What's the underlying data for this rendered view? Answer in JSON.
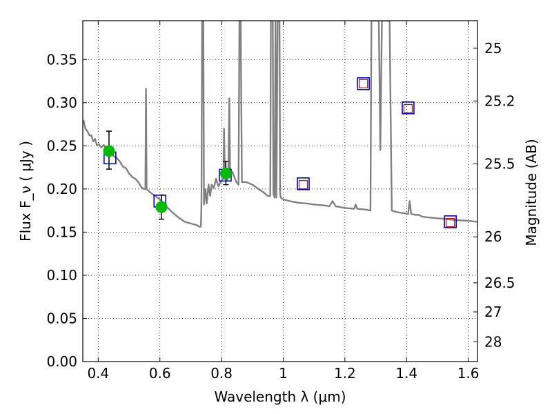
{
  "chart_data": {
    "type": "scatter",
    "xlabel": "Wavelength  λ (μm)",
    "ylabel": "Flux  F_ν  ( μJy )",
    "ylabel_right": "Magnitude (AB)",
    "xlim": [
      0.35,
      1.63
    ],
    "ylim": [
      0.0,
      0.395
    ],
    "grid": true,
    "x_ticks": [
      0.4,
      0.6,
      0.8,
      1.0,
      1.2,
      1.4,
      1.6
    ],
    "x_tick_labels": [
      "0.4",
      "0.6",
      "0.8",
      "1",
      "1.2",
      "1.4",
      "1.6"
    ],
    "y_ticks": [
      0.0,
      0.05,
      0.1,
      0.15,
      0.2,
      0.25,
      0.3,
      0.35
    ],
    "y_tick_labels": [
      "0.00",
      "0.05",
      "0.10",
      "0.15",
      "0.20",
      "0.25",
      "0.30",
      "0.35"
    ],
    "mag_ticks": [
      25,
      25.2,
      25.5,
      26,
      26.5,
      27,
      28
    ],
    "mag_tick_labels": [
      "25",
      "25.2",
      "25.5",
      "26",
      "26.5",
      "27",
      "28"
    ],
    "series": [
      {
        "kind": "line",
        "color": "#808080",
        "points": [
          [
            0.352,
            0.28
          ],
          [
            0.358,
            0.27
          ],
          [
            0.365,
            0.267
          ],
          [
            0.372,
            0.262
          ],
          [
            0.378,
            0.262
          ],
          [
            0.384,
            0.255
          ],
          [
            0.39,
            0.258
          ],
          [
            0.396,
            0.25
          ],
          [
            0.402,
            0.252
          ],
          [
            0.41,
            0.248
          ],
          [
            0.418,
            0.251
          ],
          [
            0.425,
            0.247
          ],
          [
            0.433,
            0.247
          ],
          [
            0.44,
            0.244
          ],
          [
            0.45,
            0.238
          ],
          [
            0.46,
            0.236
          ],
          [
            0.47,
            0.232
          ],
          [
            0.48,
            0.226
          ],
          [
            0.49,
            0.224
          ],
          [
            0.5,
            0.218
          ],
          [
            0.51,
            0.214
          ],
          [
            0.52,
            0.212
          ],
          [
            0.53,
            0.208
          ],
          [
            0.54,
            0.202
          ],
          [
            0.548,
            0.2
          ],
          [
            0.553,
            0.2
          ],
          [
            0.555,
            0.316
          ],
          [
            0.557,
            0.2
          ],
          [
            0.565,
            0.197
          ],
          [
            0.58,
            0.193
          ],
          [
            0.6,
            0.188
          ],
          [
            0.62,
            0.18
          ],
          [
            0.64,
            0.173
          ],
          [
            0.66,
            0.167
          ],
          [
            0.68,
            0.162
          ],
          [
            0.7,
            0.16
          ],
          [
            0.72,
            0.158
          ],
          [
            0.73,
            0.156
          ],
          [
            0.733,
            0.157
          ],
          [
            0.735,
            0.185
          ],
          [
            0.737,
            0.395
          ],
          [
            0.741,
            0.395
          ],
          [
            0.743,
            0.182
          ],
          [
            0.748,
            0.2
          ],
          [
            0.752,
            0.183
          ],
          [
            0.758,
            0.205
          ],
          [
            0.763,
            0.192
          ],
          [
            0.768,
            0.205
          ],
          [
            0.775,
            0.201
          ],
          [
            0.782,
            0.212
          ],
          [
            0.79,
            0.203
          ],
          [
            0.8,
            0.21
          ],
          [
            0.806,
            0.212
          ],
          [
            0.808,
            0.27
          ],
          [
            0.811,
            0.212
          ],
          [
            0.818,
            0.21
          ],
          [
            0.822,
            0.215
          ],
          [
            0.825,
            0.305
          ],
          [
            0.828,
            0.215
          ],
          [
            0.835,
            0.22
          ],
          [
            0.84,
            0.215
          ],
          [
            0.848,
            0.208
          ],
          [
            0.855,
            0.205
          ],
          [
            0.858,
            0.395
          ],
          [
            0.862,
            0.395
          ],
          [
            0.866,
            0.208
          ],
          [
            0.88,
            0.208
          ],
          [
            0.9,
            0.205
          ],
          [
            0.92,
            0.2
          ],
          [
            0.94,
            0.195
          ],
          [
            0.95,
            0.192
          ],
          [
            0.958,
            0.192
          ],
          [
            0.96,
            0.395
          ],
          [
            0.966,
            0.395
          ],
          [
            0.968,
            0.195
          ],
          [
            0.972,
            0.19
          ],
          [
            0.975,
            0.395
          ],
          [
            0.978,
            0.19
          ],
          [
            0.982,
            0.395
          ],
          [
            0.988,
            0.395
          ],
          [
            0.99,
            0.195
          ],
          [
            0.992,
            0.19
          ],
          [
            1.0,
            0.188
          ],
          [
            1.02,
            0.186
          ],
          [
            1.05,
            0.184
          ],
          [
            1.08,
            0.183
          ],
          [
            1.1,
            0.182
          ],
          [
            1.13,
            0.181
          ],
          [
            1.15,
            0.18
          ],
          [
            1.16,
            0.186
          ],
          [
            1.17,
            0.18
          ],
          [
            1.2,
            0.178
          ],
          [
            1.23,
            0.177
          ],
          [
            1.235,
            0.182
          ],
          [
            1.24,
            0.177
          ],
          [
            1.27,
            0.176
          ],
          [
            1.283,
            0.175
          ],
          [
            1.286,
            0.395
          ],
          [
            1.294,
            0.395
          ],
          [
            1.298,
            0.395
          ],
          [
            1.3,
            0.395
          ],
          [
            1.31,
            0.395
          ],
          [
            1.315,
            0.245
          ],
          [
            1.32,
            0.395
          ],
          [
            1.34,
            0.395
          ],
          [
            1.345,
            0.395
          ],
          [
            1.352,
            0.175
          ],
          [
            1.37,
            0.173
          ],
          [
            1.39,
            0.172
          ],
          [
            1.405,
            0.171
          ],
          [
            1.41,
            0.186
          ],
          [
            1.415,
            0.171
          ],
          [
            1.43,
            0.17
          ],
          [
            1.44,
            0.17
          ],
          [
            1.45,
            0.168
          ],
          [
            1.47,
            0.167
          ],
          [
            1.5,
            0.166
          ],
          [
            1.53,
            0.165
          ],
          [
            1.56,
            0.164
          ],
          [
            1.6,
            0.163
          ],
          [
            1.63,
            0.162
          ]
        ]
      },
      {
        "kind": "model_boxes",
        "color": "#0000cc",
        "points": [
          [
            0.438,
            0.236
          ],
          [
            0.6,
            0.186
          ],
          [
            0.812,
            0.216
          ],
          [
            1.065,
            0.206
          ],
          [
            1.26,
            0.322
          ],
          [
            1.405,
            0.294
          ],
          [
            1.542,
            0.162
          ]
        ]
      },
      {
        "kind": "obs_boxes",
        "color": "#cc0000",
        "points": [
          [
            1.065,
            0.205
          ],
          [
            1.26,
            0.322
          ],
          [
            1.405,
            0.293
          ],
          [
            1.542,
            0.161
          ]
        ]
      },
      {
        "kind": "obs_points",
        "color": "#00bb00",
        "points": [
          {
            "x": 0.435,
            "y": 0.244,
            "ylo": 0.223,
            "yhi": 0.267
          },
          {
            "x": 0.605,
            "y": 0.179,
            "ylo": 0.165,
            "yhi": 0.193
          },
          {
            "x": 0.814,
            "y": 0.218,
            "ylo": 0.205,
            "yhi": 0.232
          }
        ]
      }
    ]
  }
}
